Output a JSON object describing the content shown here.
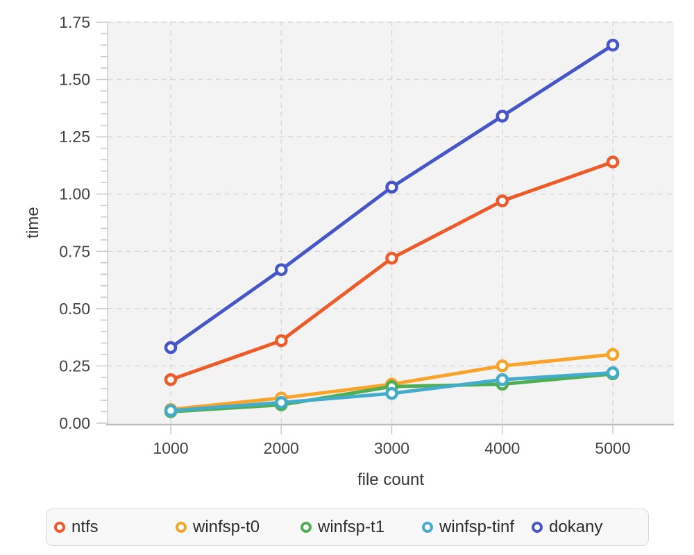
{
  "chart_data": {
    "type": "line",
    "x": [
      1000,
      2000,
      3000,
      4000,
      5000
    ],
    "x_tick_labels": [
      "1000",
      "2000",
      "3000",
      "4000",
      "5000"
    ],
    "y_tick_labels": [
      "0.00",
      "0.25",
      "0.50",
      "0.75",
      "1.00",
      "1.25",
      "1.50",
      "1.75"
    ],
    "series": [
      {
        "name": "ntfs",
        "color": "#ee5a28",
        "values": [
          0.19,
          0.36,
          0.72,
          0.97,
          1.14
        ]
      },
      {
        "name": "winfsp-t0",
        "color": "#f8a42a",
        "values": [
          0.06,
          0.11,
          0.17,
          0.25,
          0.3
        ]
      },
      {
        "name": "winfsp-t1",
        "color": "#4fae53",
        "values": [
          0.05,
          0.08,
          0.16,
          0.17,
          0.215
        ]
      },
      {
        "name": "winfsp-tinf",
        "color": "#45abcb",
        "values": [
          0.055,
          0.09,
          0.13,
          0.19,
          0.22
        ]
      },
      {
        "name": "dokany",
        "color": "#4656c8",
        "values": [
          0.33,
          0.67,
          1.03,
          1.34,
          1.65
        ]
      }
    ],
    "xlabel": "file count",
    "ylabel": "time",
    "ylim": [
      0,
      1.75
    ],
    "y_major_step": 0.25,
    "y_minor_step": 0.05,
    "grid": true,
    "marker": "open-circle",
    "legend_position": "bottom"
  },
  "style": {
    "plot_background": "#f3f3f3",
    "gridline_color": "#d8d8d8",
    "axis_line_color": "#bdbdbd",
    "tick_color": "#c9c9c9",
    "label_color": "#434343",
    "legend_background": "#f8f8f8",
    "legend_border": "#d9d9d9"
  }
}
